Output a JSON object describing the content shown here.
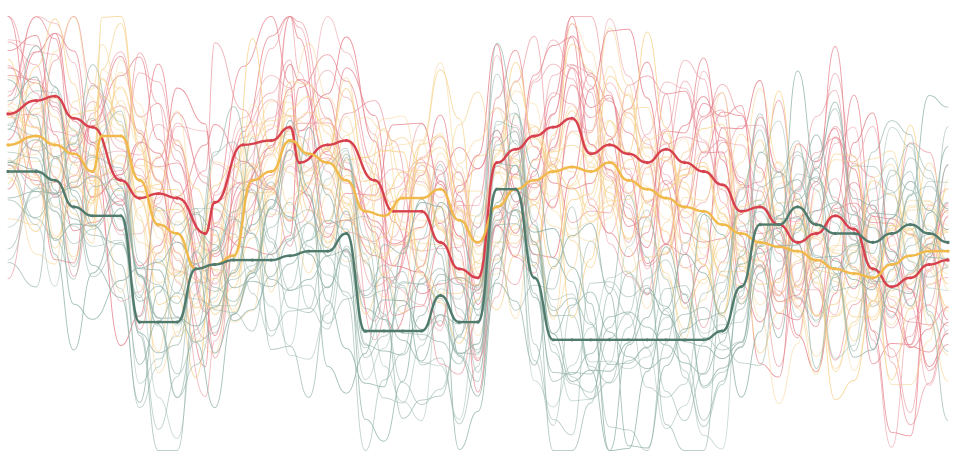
{
  "colors": {
    "background": "#ffffff",
    "red": "#d7414e",
    "red_thin": "#e57f89",
    "orange": "#f0b94a",
    "orange_thin": "#f6d28c",
    "green": "#4f7a6c",
    "green_thin": "#8fb0a6"
  },
  "chart_data": {
    "type": "line",
    "grid": false,
    "legend": "none",
    "x_range": [
      0,
      100
    ],
    "y_range": [
      0,
      100
    ],
    "series": [
      {
        "group": "red",
        "emphasis": true,
        "points": [
          [
            0,
            77
          ],
          [
            3,
            80
          ],
          [
            5,
            81
          ],
          [
            7,
            76
          ],
          [
            9,
            74
          ],
          [
            12,
            62
          ],
          [
            14,
            58
          ],
          [
            16,
            59
          ],
          [
            18,
            58
          ],
          [
            21,
            50
          ],
          [
            22,
            57
          ],
          [
            25,
            70
          ],
          [
            28,
            71
          ],
          [
            30,
            74
          ],
          [
            31,
            66
          ],
          [
            34,
            70
          ],
          [
            36,
            71
          ],
          [
            39,
            62
          ],
          [
            41,
            55
          ],
          [
            44,
            55
          ],
          [
            46,
            48
          ],
          [
            48,
            42
          ],
          [
            50,
            40
          ],
          [
            52,
            66
          ],
          [
            54,
            69
          ],
          [
            56,
            72
          ],
          [
            58,
            74
          ],
          [
            60,
            76
          ],
          [
            62,
            68
          ],
          [
            64,
            70
          ],
          [
            66,
            68
          ],
          [
            68,
            66
          ],
          [
            70,
            69
          ],
          [
            72,
            66
          ],
          [
            74,
            64
          ],
          [
            76,
            61
          ],
          [
            78,
            55
          ],
          [
            80,
            56
          ],
          [
            82,
            52
          ],
          [
            84,
            48
          ],
          [
            86,
            50
          ],
          [
            88,
            54
          ],
          [
            90,
            51
          ],
          [
            92,
            42
          ],
          [
            94,
            38
          ],
          [
            96,
            40
          ],
          [
            98,
            43
          ],
          [
            100,
            44
          ]
        ]
      },
      {
        "group": "orange",
        "emphasis": true,
        "points": [
          [
            0,
            70
          ],
          [
            3,
            72
          ],
          [
            5,
            70
          ],
          [
            7,
            68
          ],
          [
            9,
            64
          ],
          [
            10,
            72
          ],
          [
            12,
            72
          ],
          [
            14,
            62
          ],
          [
            16,
            52
          ],
          [
            18,
            50
          ],
          [
            20,
            42
          ],
          [
            22,
            43
          ],
          [
            24,
            45
          ],
          [
            26,
            62
          ],
          [
            28,
            64
          ],
          [
            30,
            71
          ],
          [
            32,
            68
          ],
          [
            34,
            66
          ],
          [
            36,
            62
          ],
          [
            38,
            55
          ],
          [
            40,
            54
          ],
          [
            42,
            58
          ],
          [
            44,
            58
          ],
          [
            46,
            60
          ],
          [
            48,
            53
          ],
          [
            50,
            48
          ],
          [
            52,
            56
          ],
          [
            54,
            60
          ],
          [
            56,
            62
          ],
          [
            58,
            64
          ],
          [
            60,
            65
          ],
          [
            62,
            64
          ],
          [
            64,
            66
          ],
          [
            66,
            62
          ],
          [
            68,
            60
          ],
          [
            70,
            58
          ],
          [
            72,
            56
          ],
          [
            74,
            55
          ],
          [
            76,
            52
          ],
          [
            78,
            50
          ],
          [
            80,
            48
          ],
          [
            82,
            47
          ],
          [
            84,
            46
          ],
          [
            86,
            44
          ],
          [
            88,
            42
          ],
          [
            90,
            41
          ],
          [
            92,
            40
          ],
          [
            94,
            43
          ],
          [
            96,
            45
          ],
          [
            98,
            46
          ],
          [
            100,
            46
          ]
        ]
      },
      {
        "group": "green",
        "emphasis": true,
        "points": [
          [
            0,
            64
          ],
          [
            3,
            64
          ],
          [
            5,
            62
          ],
          [
            7,
            56
          ],
          [
            9,
            54
          ],
          [
            12,
            54
          ],
          [
            14,
            30
          ],
          [
            16,
            30
          ],
          [
            18,
            30
          ],
          [
            20,
            42
          ],
          [
            22,
            43
          ],
          [
            24,
            44
          ],
          [
            26,
            44
          ],
          [
            28,
            44
          ],
          [
            30,
            45
          ],
          [
            32,
            46
          ],
          [
            34,
            46
          ],
          [
            36,
            50
          ],
          [
            38,
            28
          ],
          [
            40,
            28
          ],
          [
            42,
            28
          ],
          [
            44,
            28
          ],
          [
            46,
            36
          ],
          [
            48,
            30
          ],
          [
            50,
            30
          ],
          [
            52,
            60
          ],
          [
            54,
            60
          ],
          [
            56,
            40
          ],
          [
            58,
            26
          ],
          [
            60,
            26
          ],
          [
            62,
            26
          ],
          [
            64,
            26
          ],
          [
            66,
            26
          ],
          [
            68,
            26
          ],
          [
            70,
            26
          ],
          [
            72,
            26
          ],
          [
            74,
            26
          ],
          [
            76,
            28
          ],
          [
            78,
            38
          ],
          [
            80,
            52
          ],
          [
            82,
            52
          ],
          [
            84,
            56
          ],
          [
            86,
            52
          ],
          [
            88,
            50
          ],
          [
            90,
            50
          ],
          [
            92,
            48
          ],
          [
            94,
            50
          ],
          [
            96,
            52
          ],
          [
            98,
            50
          ],
          [
            100,
            48
          ]
        ]
      }
    ]
  }
}
